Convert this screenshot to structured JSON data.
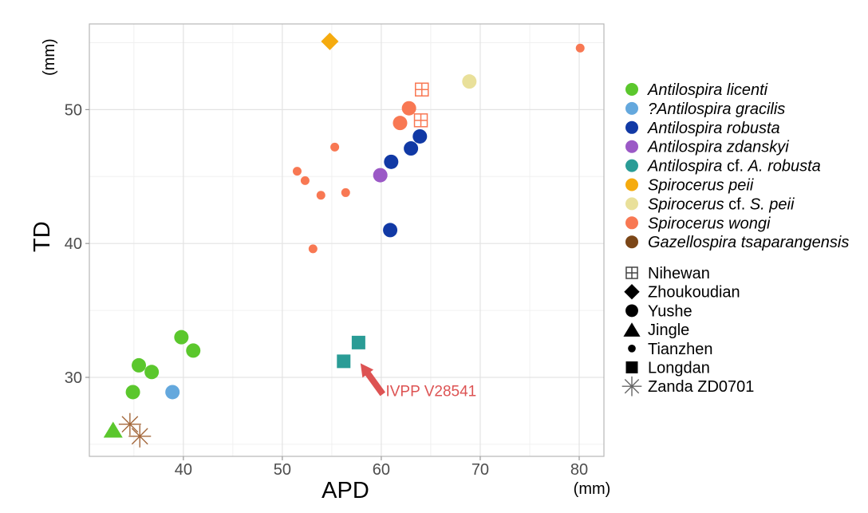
{
  "chart_data": {
    "type": "scatter",
    "axes": {
      "x_label": "APD",
      "x_unit": "(mm)",
      "y_label": "TD",
      "y_unit": "(mm)",
      "x_domain": [
        30.5,
        82.5
      ],
      "y_domain": [
        24.1,
        56.4
      ],
      "x_ticks": [
        40,
        50,
        60,
        70,
        80
      ],
      "x_minor_ticks": [
        35,
        45,
        55,
        65,
        75
      ],
      "y_ticks": [
        30,
        40,
        50
      ],
      "y_minor_ticks": [
        25,
        35,
        45,
        55
      ]
    },
    "series": [
      {
        "species": "Antilospira licenti",
        "label_parts": [
          {
            "t": "Antilospira licenti",
            "i": true
          }
        ],
        "color": "#5BC72D",
        "groups": [
          {
            "locality": "Yushe",
            "shape": "circle-large",
            "points": [
              [
                39.8,
                33.0
              ],
              [
                41.0,
                32.0
              ],
              [
                35.5,
                30.9
              ],
              [
                36.8,
                30.4
              ],
              [
                34.9,
                28.9
              ]
            ]
          },
          {
            "locality": "Jingle",
            "shape": "triangle",
            "points": [
              [
                32.9,
                26.1
              ]
            ]
          }
        ]
      },
      {
        "species": "?Antilospira gracilis",
        "label_parts": [
          {
            "t": "?Antilospira gracilis",
            "i": true
          }
        ],
        "color": "#64A8DD",
        "groups": [
          {
            "locality": "Yushe",
            "shape": "circle-large",
            "points": [
              [
                38.9,
                28.9
              ]
            ]
          }
        ]
      },
      {
        "species": "Antilospira robusta",
        "label_parts": [
          {
            "t": "Antilospira robusta",
            "i": true
          }
        ],
        "color": "#1139A5",
        "groups": [
          {
            "locality": "Yushe",
            "shape": "circle-large",
            "points": [
              [
                63.9,
                48.0
              ],
              [
                63.0,
                47.1
              ],
              [
                61.0,
                46.1
              ],
              [
                60.9,
                41.0
              ]
            ]
          }
        ]
      },
      {
        "species": "Antilospira zdanskyi",
        "label_parts": [
          {
            "t": "Antilospira zdanskyi",
            "i": true
          }
        ],
        "color": "#9B59C6",
        "groups": [
          {
            "locality": "Yushe",
            "shape": "circle-large",
            "points": [
              [
                59.9,
                45.1
              ]
            ]
          }
        ]
      },
      {
        "species": "Antilospira cf. A. robusta",
        "label_parts": [
          {
            "t": "Antilospira ",
            "i": true
          },
          {
            "t": "cf. ",
            "i": false
          },
          {
            "t": "A. robusta",
            "i": true
          }
        ],
        "color": "#2A9C96",
        "groups": [
          {
            "locality": "Longdan",
            "shape": "square",
            "points": [
              [
                57.7,
                32.6
              ],
              [
                56.2,
                31.2
              ]
            ]
          }
        ]
      },
      {
        "species": "Spirocerus peii",
        "label_parts": [
          {
            "t": "Spirocerus peii",
            "i": true
          }
        ],
        "color": "#F5AB0F",
        "groups": [
          {
            "locality": "Zhoukoudian",
            "shape": "diamond",
            "points": [
              [
                54.8,
                55.1
              ]
            ]
          }
        ]
      },
      {
        "species": "Spirocerus cf. S. peii",
        "label_parts": [
          {
            "t": "Spirocerus ",
            "i": true
          },
          {
            "t": "cf. ",
            "i": false
          },
          {
            "t": "S. peii",
            "i": true
          }
        ],
        "color": "#E9E09A",
        "groups": [
          {
            "locality": "Yushe",
            "shape": "circle-large",
            "points": [
              [
                68.9,
                52.1
              ]
            ]
          }
        ]
      },
      {
        "species": "Spirocerus wongi",
        "label_parts": [
          {
            "t": "Spirocerus wongi",
            "i": true
          }
        ],
        "color": "#F87853",
        "groups": [
          {
            "locality": "Yushe",
            "shape": "circle-large",
            "points": [
              [
                62.8,
                50.1
              ],
              [
                61.9,
                49.0
              ]
            ]
          },
          {
            "locality": "Nihewan",
            "shape": "square-cross",
            "points": [
              [
                64.1,
                51.5
              ],
              [
                64.0,
                49.2
              ]
            ]
          },
          {
            "locality": "Tianzhen",
            "shape": "circle-small",
            "points": [
              [
                55.3,
                47.2
              ],
              [
                51.5,
                45.4
              ],
              [
                52.3,
                44.7
              ],
              [
                53.9,
                43.6
              ],
              [
                56.4,
                43.8
              ],
              [
                53.1,
                39.6
              ],
              [
                80.1,
                54.6
              ]
            ]
          }
        ]
      },
      {
        "species": "Gazellospira tsaparangensis",
        "label_parts": [
          {
            "t": "Gazellospira tsaparangensis",
            "i": true
          }
        ],
        "color": "#7B4617",
        "stroke_color": "#A4683C",
        "groups": [
          {
            "locality": "Zanda ZD0701",
            "shape": "asterisk",
            "points": [
              [
                34.6,
                26.5
              ],
              [
                35.6,
                25.6
              ]
            ]
          }
        ]
      }
    ],
    "locality_legend": [
      {
        "label": "Nihewan",
        "shape": "square-cross"
      },
      {
        "label": "Zhoukoudian",
        "shape": "diamond"
      },
      {
        "label": "Yushe",
        "shape": "circle-large"
      },
      {
        "label": "Jingle",
        "shape": "triangle"
      },
      {
        "label": "Tianzhen",
        "shape": "circle-small"
      },
      {
        "label": "Longdan",
        "shape": "square"
      },
      {
        "label": "Zanda ZD0701",
        "shape": "asterisk"
      }
    ],
    "annotation": {
      "text": "IVPP V28541",
      "color": "#DD5353",
      "text_pos": [
        60.45,
        28.6
      ],
      "arrow_tail": [
        60.15,
        28.75
      ],
      "arrow_tip": [
        57.9,
        31.05
      ]
    },
    "style": {
      "grid_major_color": "#E3E3E3",
      "grid_minor_color": "#F0F0F0",
      "panel_border_color": "#B8B8B8",
      "tick_color": "#999999",
      "tick_label_color": "#4d4d4d"
    }
  }
}
